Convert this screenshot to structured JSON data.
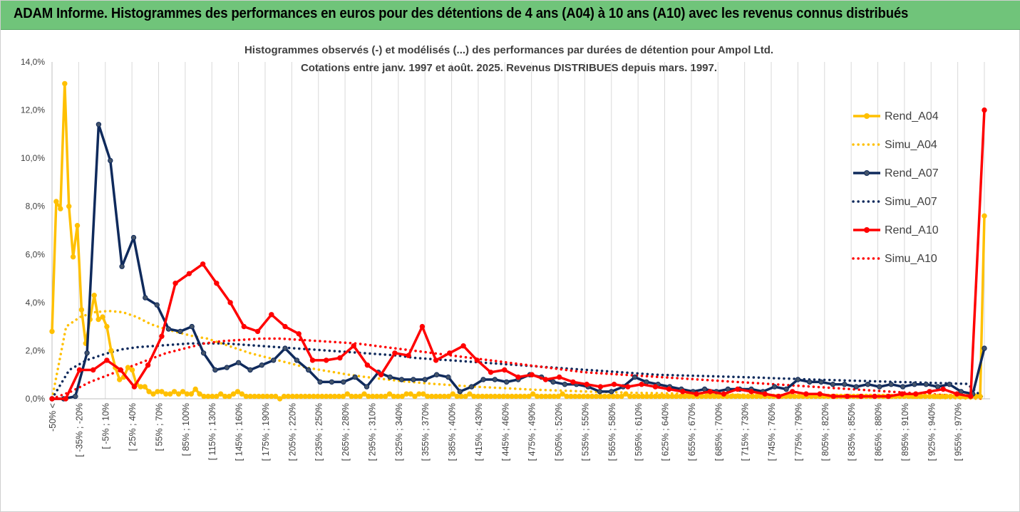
{
  "banner": {
    "title": "ADAM Informe. Histogrammes des performances en euros pour des détentions de 4 ans (A04) à 10 ans (A10) avec les revenus connus distribués"
  },
  "chart_data": {
    "type": "line",
    "title": "Histogrammes observés (-) et modélisés (...) des performances par durées de détention pour Ampol Ltd.",
    "subtitle": "Cotations entre janv. 1997 et août. 2025. Revenus DISTRIBUES depuis mars. 1997.",
    "xlabel": "",
    "ylabel": "",
    "ylim": [
      0,
      14
    ],
    "y_ticks": [
      "0,0%",
      "2,0%",
      "4,0%",
      "6,0%",
      "8,0%",
      "10,0%",
      "12,0%",
      "14,0%"
    ],
    "grid": "vertical",
    "legend_position": "right",
    "x_tick_labels": [
      "-50% <",
      "[ -35% ; -20%",
      "[ -5% ; 10%",
      "[ 25% ; 40%",
      "[ 55% ; 70%",
      "[ 85% ; 100%",
      "[ 115% ; 130%",
      "[ 145% ; 160%",
      "[ 175% ; 190%",
      "[ 205% ; 220%",
      "[ 235% ; 250%",
      "[ 265% ; 280%",
      "[ 295% ; 310%",
      "[ 325% ; 340%",
      "[ 355% ; 370%",
      "[ 385% ; 400%",
      "[ 415% ; 430%",
      "[ 445% ; 460%",
      "[ 475% ; 490%",
      "[ 505% ; 520%",
      "[ 535% ; 550%",
      "[ 565% ; 580%",
      "[ 595% ; 610%",
      "[ 625% ; 640%",
      "[ 655% ; 670%",
      "[ 685% ; 700%",
      "[ 715% ; 730%",
      "[ 745% ; 760%",
      "[ 775% ; 790%",
      "[ 805% ; 820%",
      "[ 835% ; 850%",
      "[ 865% ; 880%",
      "[ 895% ; 910%",
      "[ 925% ; 940%",
      "[ 955% ; 970%"
    ],
    "series": [
      {
        "name": "Rend_A04",
        "color": "#ffc000",
        "style": "solid",
        "values": [
          2.8,
          8.2,
          7.9,
          13.1,
          8.0,
          5.9,
          7.2,
          3.7,
          2.3,
          3.3,
          4.3,
          3.3,
          3.4,
          3.0,
          2.0,
          1.3,
          0.8,
          0.9,
          1.3,
          1.2,
          0.6,
          0.5,
          0.5,
          0.3,
          0.2,
          0.3,
          0.3,
          0.2,
          0.2,
          0.3,
          0.2,
          0.3,
          0.2,
          0.2,
          0.4,
          0.2,
          0.1,
          0.1,
          0.1,
          0.1,
          0.2,
          0.1,
          0.1,
          0.2,
          0.3,
          0.2,
          0.1,
          0.1,
          0.1,
          0.1,
          0.1,
          0.1,
          0.1,
          0.1,
          0.0,
          0.1,
          0.1,
          0.1,
          0.1,
          0.1,
          0.1,
          0.1,
          0.1,
          0.1,
          0.1,
          0.1,
          0.1,
          0.1,
          0.1,
          0.1,
          0.2,
          0.1,
          0.1,
          0.1,
          0.2,
          0.1,
          0.1,
          0.1,
          0.1,
          0.1,
          0.2,
          0.1,
          0.1,
          0.1,
          0.2,
          0.2,
          0.1,
          0.2,
          0.2,
          0.1,
          0.1,
          0.1,
          0.1,
          0.1,
          0.1,
          0.2,
          0.1,
          0.1,
          0.1,
          0.2,
          0.1,
          0.1,
          0.1,
          0.1,
          0.1,
          0.1,
          0.1,
          0.1,
          0.1,
          0.1,
          0.1,
          0.1,
          0.1,
          0.1,
          0.2,
          0.1,
          0.1,
          0.1,
          0.1,
          0.1,
          0.1,
          0.2,
          0.1,
          0.1,
          0.1,
          0.1,
          0.1,
          0.1,
          0.1,
          0.1,
          0.1,
          0.1,
          0.1,
          0.1,
          0.1,
          0.1,
          0.2,
          0.1,
          0.1,
          0.1,
          0.1,
          0.1,
          0.1,
          0.1,
          0.1,
          0.1,
          0.1,
          0.1,
          0.1,
          0.1,
          0.1,
          0.1,
          0.1,
          0.1,
          0.1,
          0.1,
          0.1,
          0.1,
          0.1,
          0.1,
          0.1,
          0.1,
          0.1,
          0.1,
          0.1,
          0.1,
          0.1,
          0.1,
          0.1,
          0.1,
          0.1,
          0.1,
          0.1,
          0.1,
          0.1,
          0.1,
          0.1,
          0.1,
          0.1,
          0.1,
          0.1,
          0.1,
          0.1,
          0.1,
          0.1,
          0.1,
          0.1,
          0.1,
          0.1,
          0.1,
          0.1,
          0.1,
          0.1,
          0.1,
          0.1,
          0.1,
          0.1,
          0.1,
          0.1,
          0.1,
          0.1,
          0.1,
          0.1,
          0.1,
          0.1,
          0.1,
          0.1,
          0.1,
          0.1,
          0.1,
          0.1,
          0.1,
          0.1,
          0.1,
          0.1,
          0.1,
          0.1,
          0.1,
          0.1,
          0.1,
          0.1,
          7.6
        ]
      },
      {
        "name": "Simu_A04",
        "color": "#ffc000",
        "style": "dotted",
        "values": [
          0.0,
          3.0,
          3.4,
          3.6,
          3.65,
          3.6,
          3.4,
          3.1,
          2.9,
          2.75,
          2.6,
          2.5,
          2.3,
          2.1,
          1.9,
          1.75,
          1.6,
          1.45,
          1.3,
          1.2,
          1.1,
          1.0,
          0.92,
          0.85,
          0.78,
          0.72,
          0.67,
          0.62,
          0.58,
          0.54,
          0.5,
          0.47,
          0.44,
          0.41,
          0.38,
          0.36,
          0.34,
          0.32,
          0.3,
          0.28,
          0.27,
          0.25,
          0.24,
          0.23,
          0.22,
          0.21,
          0.2,
          0.19,
          0.18,
          0.17,
          0.16,
          0.15,
          0.14,
          0.13,
          0.12,
          0.11,
          0.1,
          0.09,
          0.08,
          0.07,
          0.06,
          0.05,
          0.04,
          0.03,
          0.02,
          0.01,
          0.0
        ]
      },
      {
        "name": "Rend_A07",
        "color": "#0f2a5c",
        "style": "solid",
        "values": [
          0.0,
          0.0,
          0.1,
          1.9,
          11.4,
          9.9,
          5.5,
          6.7,
          4.2,
          3.9,
          2.9,
          2.8,
          3.0,
          1.9,
          1.2,
          1.3,
          1.5,
          1.2,
          1.4,
          1.6,
          2.1,
          1.6,
          1.2,
          0.7,
          0.7,
          0.7,
          0.9,
          0.5,
          1.1,
          0.9,
          0.8,
          0.8,
          0.8,
          1.0,
          0.9,
          0.3,
          0.5,
          0.8,
          0.8,
          0.7,
          0.8,
          1.0,
          0.9,
          0.7,
          0.6,
          0.6,
          0.5,
          0.3,
          0.3,
          0.5,
          0.9,
          0.7,
          0.6,
          0.5,
          0.4,
          0.3,
          0.4,
          0.3,
          0.4,
          0.4,
          0.4,
          0.3,
          0.5,
          0.4,
          0.8,
          0.7,
          0.7,
          0.6,
          0.6,
          0.5,
          0.6,
          0.5,
          0.6,
          0.5,
          0.6,
          0.6,
          0.5,
          0.6,
          0.3,
          0.2,
          2.1
        ]
      },
      {
        "name": "Simu_A07",
        "color": "#0f2a5c",
        "style": "dotted",
        "values": [
          0.0,
          1.2,
          1.6,
          1.85,
          2.05,
          2.15,
          2.2,
          2.25,
          2.3,
          2.3,
          2.3,
          2.25,
          2.2,
          2.15,
          2.1,
          2.05,
          2.0,
          1.95,
          1.9,
          1.85,
          1.8,
          1.7,
          1.65,
          1.6,
          1.55,
          1.5,
          1.45,
          1.4,
          1.35,
          1.3,
          1.25,
          1.2,
          1.15,
          1.1,
          1.05,
          1.0,
          0.98,
          0.96,
          0.94,
          0.92,
          0.9,
          0.88,
          0.85,
          0.83,
          0.8,
          0.78,
          0.76,
          0.74,
          0.72,
          0.7,
          0.68,
          0.66,
          0.64,
          0.62,
          0.0
        ]
      },
      {
        "name": "Rend_A10",
        "color": "#ff0000",
        "style": "solid",
        "values": [
          0.0,
          0.0,
          1.2,
          1.2,
          1.6,
          1.2,
          0.5,
          1.4,
          2.6,
          4.8,
          5.2,
          5.6,
          4.8,
          4.0,
          3.0,
          2.8,
          3.5,
          3.0,
          2.7,
          1.6,
          1.6,
          1.7,
          2.2,
          1.4,
          1.0,
          1.9,
          1.8,
          3.0,
          1.6,
          1.9,
          2.2,
          1.6,
          1.1,
          1.2,
          0.9,
          1.0,
          0.8,
          0.9,
          0.7,
          0.6,
          0.5,
          0.6,
          0.5,
          0.6,
          0.5,
          0.4,
          0.3,
          0.2,
          0.3,
          0.2,
          0.4,
          0.3,
          0.2,
          0.1,
          0.3,
          0.2,
          0.2,
          0.1,
          0.1,
          0.1,
          0.1,
          0.1,
          0.2,
          0.2,
          0.3,
          0.4,
          0.2,
          0.1,
          12.0
        ]
      },
      {
        "name": "Simu_A10",
        "color": "#ff0000",
        "style": "dotted",
        "values": [
          0.0,
          0.3,
          0.7,
          1.0,
          1.3,
          1.6,
          1.9,
          2.1,
          2.3,
          2.4,
          2.45,
          2.5,
          2.5,
          2.45,
          2.4,
          2.35,
          2.3,
          2.2,
          2.1,
          2.0,
          1.9,
          1.8,
          1.7,
          1.6,
          1.5,
          1.4,
          1.3,
          1.2,
          1.1,
          1.05,
          1.0,
          0.95,
          0.9,
          0.85,
          0.8,
          0.75,
          0.7,
          0.65,
          0.6,
          0.55,
          0.5,
          0.45,
          0.4,
          0.35,
          0.3,
          0.25,
          0.2,
          0.15,
          0.1,
          0.0
        ]
      }
    ]
  }
}
